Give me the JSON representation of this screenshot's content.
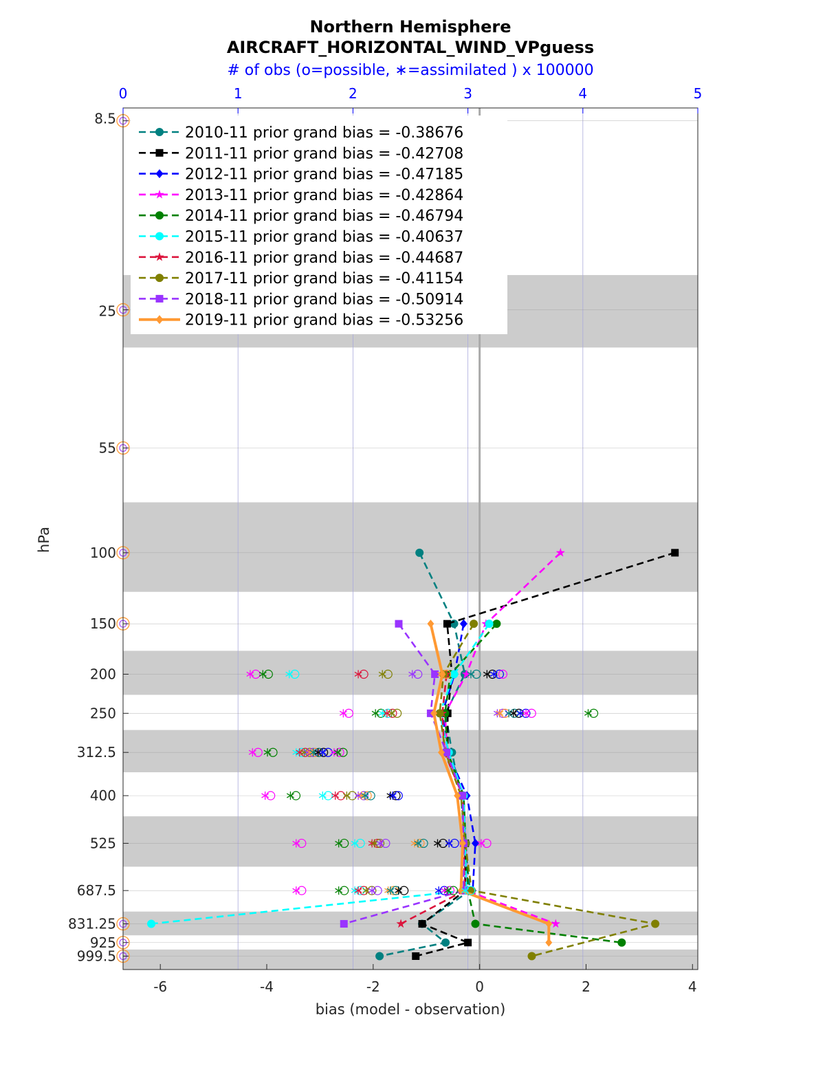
{
  "chart_data": {
    "type": "line",
    "title": "Northern Hemisphere",
    "subtitle": "AIRCRAFT_HORIZONTAL_WIND_VPguess",
    "top_axis_label": "# of obs (o=possible, ∗=assimilated ) x 100000",
    "xlabel": "bias (model - observation)",
    "ylabel": "hPa",
    "xlim": [
      -6.7,
      4.1
    ],
    "top_xlim": [
      0,
      5
    ],
    "top_ticks": [
      "0",
      "1",
      "2",
      "3",
      "4",
      "5"
    ],
    "x_ticks": [
      "-6",
      "-4",
      "-2",
      "0",
      "2",
      "4"
    ],
    "x_tick_values": [
      -6,
      -4,
      -2,
      0,
      2,
      4
    ],
    "y_scale": "log",
    "y_reversed": true,
    "ylim": [
      7.9,
      1079
    ],
    "levels": [
      8.5,
      25,
      55,
      100,
      150,
      200,
      250,
      312.5,
      400,
      525,
      687.5,
      831.25,
      925,
      999.5
    ],
    "level_labels": [
      "8.5",
      "25",
      "55",
      "100",
      "150",
      "200",
      "250",
      "312.5",
      "400",
      "525",
      "687.5",
      "831.25",
      "925",
      "999.5"
    ],
    "shaded_layers": [
      [
        20.5,
        31
      ],
      [
        75,
        125
      ],
      [
        175,
        225
      ],
      [
        275,
        350
      ],
      [
        450,
        600
      ],
      [
        775,
        887.5
      ],
      [
        962.5,
        1079
      ]
    ],
    "grid": true,
    "legend_location": "top-left",
    "series": [
      {
        "name": "2010-11 prior grand bias = -0.38676",
        "color": "#008080",
        "marker": "circle",
        "values": [
          null,
          null,
          null,
          -1.13,
          -0.48,
          -0.28,
          -0.64,
          -0.52,
          -0.35,
          -0.28,
          -0.18,
          -1.08,
          -0.64,
          -1.88
        ],
        "possible": [
          {
            "level": 200,
            "x": -0.28
          },
          {
            "level": 250,
            "x": -0.64
          },
          {
            "level": 312.5,
            "x": -0.52
          },
          {
            "level": 400,
            "x": -0.35
          }
        ]
      },
      {
        "name": "2011-11 prior grand bias = -0.42708",
        "color": "#000000",
        "marker": "square",
        "values": [
          null,
          null,
          null,
          3.67,
          -0.61,
          -0.52,
          -0.6,
          -0.6,
          -0.3,
          -0.27,
          -0.27,
          -1.08,
          -0.22,
          -1.2
        ],
        "possible": []
      },
      {
        "name": "2012-11 prior grand bias = -0.47185",
        "color": "#0000ff",
        "marker": "diamond",
        "values": [
          null,
          null,
          null,
          null,
          -0.3,
          -0.47,
          -0.7,
          -0.6,
          -0.24,
          -0.08,
          -0.13,
          null,
          null,
          null
        ],
        "possible": []
      },
      {
        "name": "2013-11 prior grand bias = -0.42864",
        "color": "#ff00ff",
        "marker": "star",
        "values": [
          null,
          null,
          null,
          1.52,
          0.12,
          -0.25,
          -0.65,
          -0.61,
          -0.3,
          -0.26,
          -0.25,
          1.43,
          null,
          null
        ],
        "possible": []
      },
      {
        "name": "2014-11 prior grand bias = -0.46794",
        "color": "#008000",
        "marker": "hexagram",
        "values": [
          null,
          null,
          null,
          null,
          0.32,
          -0.55,
          -0.65,
          -0.6,
          -0.3,
          -0.26,
          -0.22,
          -0.08,
          2.67,
          null
        ],
        "possible": []
      },
      {
        "name": "2015-11 prior grand bias = -0.40637",
        "color": "#00ffff",
        "marker": "circle",
        "values": [
          null,
          null,
          null,
          null,
          0.18,
          -0.48,
          -0.75,
          -0.58,
          -0.3,
          -0.27,
          -0.25,
          -6.17,
          null,
          null
        ],
        "possible": []
      },
      {
        "name": "2016-11 prior grand bias = -0.44687",
        "color": "#dc143c",
        "marker": "star",
        "values": [
          null,
          null,
          null,
          null,
          null,
          -0.62,
          -0.7,
          -0.66,
          -0.32,
          -0.3,
          -0.28,
          -1.48,
          null,
          null
        ],
        "possible": []
      },
      {
        "name": "2017-11 prior grand bias = -0.41154",
        "color": "#808000",
        "marker": "circle",
        "values": [
          null,
          null,
          null,
          null,
          -0.11,
          -0.68,
          -0.75,
          -0.64,
          -0.35,
          -0.27,
          -0.15,
          3.3,
          null,
          0.98
        ],
        "possible": []
      },
      {
        "name": "2018-11 prior grand bias = -0.50914",
        "color": "#9933ff",
        "marker": "square",
        "values": [
          null,
          null,
          null,
          null,
          -1.52,
          -0.84,
          -0.92,
          -0.62,
          -0.32,
          -0.3,
          -0.3,
          -2.55,
          null,
          null
        ],
        "possible": []
      },
      {
        "name": "2019-11 prior grand bias = -0.53256",
        "color": "#ff9933",
        "marker": "diamond",
        "bold": true,
        "values": [
          null,
          null,
          null,
          null,
          -0.92,
          -0.7,
          -0.86,
          -0.72,
          -0.42,
          -0.32,
          -0.35,
          1.3,
          1.3,
          null
        ],
        "possible": []
      }
    ],
    "obs_counts": {
      "note_scale": "x 100000",
      "zero_markers_levels": [
        8.5,
        25,
        55,
        100,
        150,
        831.25,
        925,
        999.5
      ],
      "possible": {
        "200": [
          1.13,
          1.24,
          1.47,
          2.07,
          2.28,
          2.54,
          2.79,
          3.05,
          3.19,
          3.25,
          3.28
        ],
        "250": [
          1.94,
          2.22,
          2.28,
          2.32,
          2.36,
          3.28,
          3.3,
          3.38,
          3.42,
          3.48,
          3.53,
          4.07
        ],
        "312.5": [
          1.15,
          1.28,
          1.53,
          1.56,
          1.6,
          1.63,
          1.65,
          1.68,
          1.72,
          1.76,
          1.86,
          1.89
        ],
        "400": [
          1.26,
          1.48,
          1.76,
          1.87,
          1.97,
          2.07,
          2.1,
          2.13,
          2.35,
          2.37
        ],
        "525": [
          1.53,
          1.9,
          2.04,
          2.19,
          2.21,
          2.26,
          2.56,
          2.59,
          2.76,
          2.86,
          3.14
        ],
        "687.5": [
          1.53,
          1.9,
          2.04,
          2.07,
          2.14,
          2.19,
          2.33,
          2.35,
          2.42,
          2.77,
          2.82,
          2.85,
          3.0
        ]
      },
      "assimilated": {
        "200": [
          1.13,
          1.24,
          1.47,
          2.07,
          2.28,
          2.54,
          2.79,
          3.05,
          3.19,
          3.25
        ],
        "250": [
          1.94,
          2.22,
          2.28,
          2.32,
          2.36,
          3.28,
          3.3,
          3.38,
          3.42,
          3.48,
          3.53,
          4.07
        ],
        "312.5": [
          1.15,
          1.28,
          1.53,
          1.56,
          1.6,
          1.63,
          1.65,
          1.68,
          1.72,
          1.76,
          1.86,
          1.89
        ],
        "400": [
          1.26,
          1.48,
          1.76,
          1.87,
          1.97,
          2.07,
          2.1,
          2.13,
          2.35,
          2.37
        ],
        "525": [
          1.53,
          1.9,
          2.04,
          2.19,
          2.21,
          2.26,
          2.56,
          2.59,
          2.76,
          2.86,
          3.14
        ],
        "687.5": [
          1.53,
          1.9,
          2.04,
          2.07,
          2.14,
          2.19,
          2.33,
          2.35,
          2.42,
          2.77,
          2.82,
          2.85,
          3.0
        ]
      }
    }
  }
}
